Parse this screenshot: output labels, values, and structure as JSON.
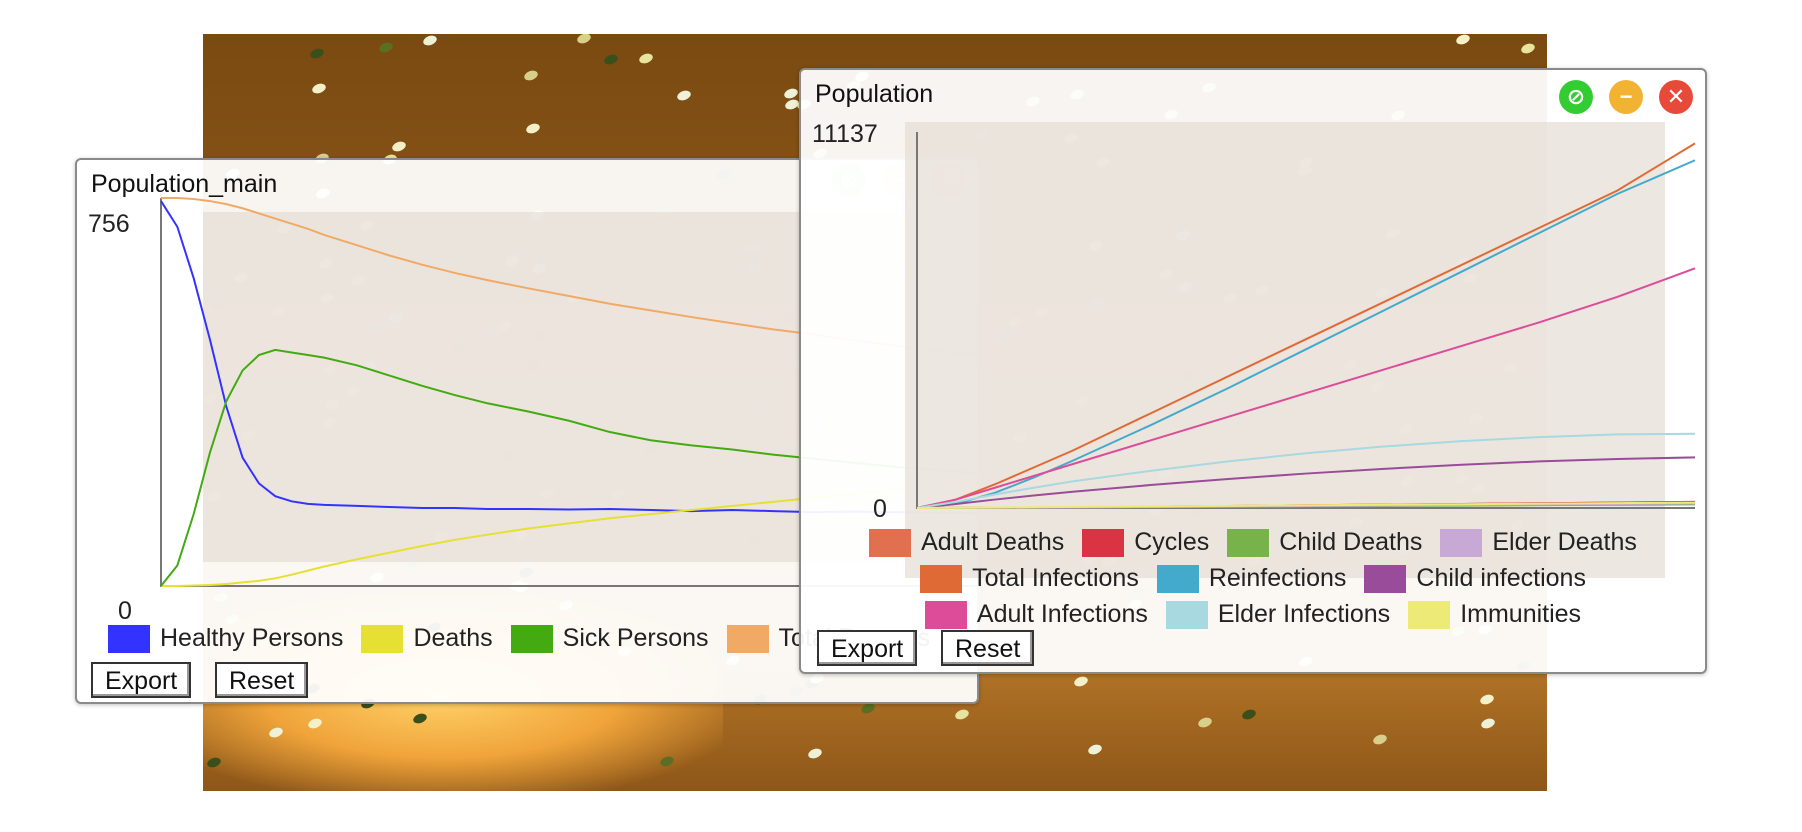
{
  "world": {
    "background": "#8a5618"
  },
  "panels": {
    "main": {
      "title": "Population_main",
      "y_max_label": "756",
      "y_min_label": "0",
      "export_label": "Export",
      "reset_label": "Reset",
      "ghost_controls": {
        "detach": "detach-icon",
        "minimize": "minimize-icon",
        "close": "close-icon"
      }
    },
    "population": {
      "title": "Population",
      "y_max_label": "11137",
      "y_min_label": "0",
      "export_label": "Export",
      "reset_label": "Reset",
      "controls": {
        "detach": {
          "icon": "detach-icon",
          "color": "#33cc33"
        },
        "minimize": {
          "icon": "minimize-icon",
          "color": "#f2b233"
        },
        "close": {
          "icon": "close-icon",
          "color": "#e84a3a"
        }
      }
    }
  },
  "chart_data": [
    {
      "type": "line",
      "title": "Population_main",
      "ylim": [
        0,
        756
      ],
      "x": [
        0,
        2,
        4,
        6,
        8,
        10,
        12,
        14,
        16,
        18,
        20,
        24,
        28,
        32,
        36,
        40,
        45,
        50,
        55,
        60,
        65,
        70,
        75,
        80,
        85,
        90,
        95,
        100
      ],
      "series": [
        {
          "name": "Healthy Persons",
          "color": "#3333ff",
          "values": [
            750,
            700,
            600,
            480,
            350,
            250,
            200,
            175,
            165,
            160,
            158,
            156,
            154,
            152,
            152,
            150,
            150,
            149,
            150,
            148,
            146,
            148,
            146,
            144,
            145,
            144,
            143,
            142
          ]
        },
        {
          "name": "Deaths",
          "color": "#e6e033",
          "values": [
            0,
            0,
            1,
            2,
            4,
            7,
            10,
            15,
            22,
            30,
            38,
            52,
            65,
            78,
            90,
            100,
            112,
            122,
            132,
            140,
            148,
            156,
            164,
            172,
            180,
            188,
            196,
            204
          ]
        },
        {
          "name": "Sick Persons",
          "color": "#44aa11",
          "values": [
            0,
            40,
            140,
            260,
            360,
            420,
            450,
            460,
            455,
            450,
            445,
            430,
            410,
            390,
            372,
            356,
            340,
            322,
            300,
            284,
            274,
            266,
            256,
            248,
            240,
            232,
            226,
            220
          ]
        },
        {
          "name": "Total Persons",
          "color": "#f0aa66",
          "values": [
            756,
            756,
            754,
            750,
            744,
            736,
            726,
            716,
            706,
            696,
            684,
            664,
            644,
            626,
            610,
            596,
            580,
            565,
            550,
            537,
            524,
            512,
            500,
            490,
            478,
            468,
            458,
            450
          ]
        }
      ],
      "legend_placement": "bottom"
    },
    {
      "type": "line",
      "title": "Population",
      "ylim": [
        0,
        11137
      ],
      "x": [
        0,
        5,
        10,
        15,
        20,
        30,
        40,
        50,
        60,
        70,
        80,
        90,
        100
      ],
      "series": [
        {
          "name": "Adult Deaths",
          "color": "#e07050",
          "values": [
            0,
            5,
            10,
            15,
            20,
            40,
            60,
            80,
            100,
            120,
            140,
            160,
            180
          ]
        },
        {
          "name": "Cycles",
          "color": "#d93344",
          "values": [
            0,
            5,
            10,
            15,
            20,
            40,
            60,
            80,
            100,
            120,
            140,
            160,
            180
          ]
        },
        {
          "name": "Child Deaths",
          "color": "#77b24a",
          "values": [
            0,
            3,
            6,
            10,
            14,
            25,
            36,
            48,
            60,
            72,
            84,
            96,
            108
          ]
        },
        {
          "name": "Elder Deaths",
          "color": "#c8a8d4",
          "values": [
            0,
            3,
            7,
            11,
            16,
            30,
            45,
            60,
            75,
            90,
            105,
            120,
            135
          ]
        },
        {
          "name": "Total Infections",
          "color": "#e06a35",
          "values": [
            0,
            250,
            700,
            1200,
            1700,
            2800,
            3900,
            5000,
            6100,
            7200,
            8300,
            9400,
            10800
          ]
        },
        {
          "name": "Reinfections",
          "color": "#44aacc",
          "values": [
            0,
            120,
            450,
            900,
            1400,
            2450,
            3550,
            4700,
            5850,
            7000,
            8150,
            9300,
            10300
          ]
        },
        {
          "name": "Child infections",
          "color": "#994c99",
          "values": [
            0,
            120,
            250,
            370,
            480,
            680,
            860,
            1020,
            1160,
            1280,
            1380,
            1450,
            1500
          ]
        },
        {
          "name": "Adult Infections",
          "color": "#dd4c99",
          "values": [
            0,
            250,
            600,
            950,
            1300,
            2000,
            2700,
            3400,
            4100,
            4800,
            5500,
            6250,
            7100
          ]
        },
        {
          "name": "Elder Infections",
          "color": "#a8d8e0",
          "values": [
            0,
            180,
            400,
            600,
            790,
            1100,
            1380,
            1620,
            1820,
            1980,
            2100,
            2180,
            2200
          ]
        },
        {
          "name": "Immunities",
          "color": "#eeea77",
          "values": [
            0,
            8,
            16,
            24,
            32,
            48,
            64,
            80,
            96,
            112,
            128,
            144,
            160
          ]
        }
      ],
      "legend_placement": "bottom"
    }
  ]
}
